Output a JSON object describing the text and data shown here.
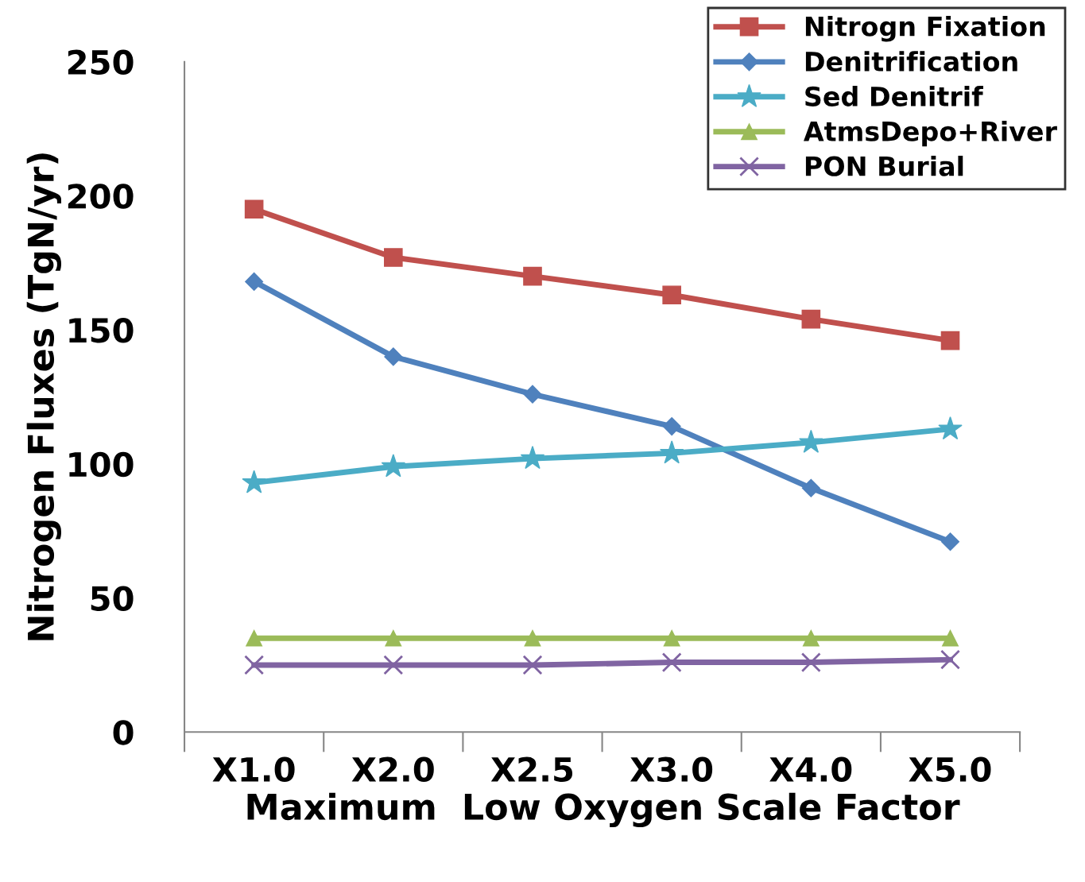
{
  "chart_data": {
    "type": "line",
    "xlabel": "Maximum  Low Oxygen Scale Factor",
    "ylabel": "Nitrogen Fluxes (TgN/yr)",
    "categories": [
      "X1.0",
      "X2.0",
      "X2.5",
      "X3.0",
      "X4.0",
      "X5.0"
    ],
    "series": [
      {
        "name": "Nitrogn Fixation",
        "color": "#c0504d",
        "marker": "square",
        "values": [
          195,
          177,
          170,
          163,
          154,
          146
        ]
      },
      {
        "name": "Denitrification",
        "color": "#4f81bd",
        "marker": "diamond",
        "values": [
          168,
          140,
          126,
          114,
          91,
          71
        ]
      },
      {
        "name": "Sed Denitrif",
        "color": "#4bacc6",
        "marker": "star",
        "values": [
          93,
          99,
          102,
          104,
          108,
          113
        ]
      },
      {
        "name": "AtmsDepo+River",
        "color": "#9bbb59",
        "marker": "triangle",
        "values": [
          35,
          35,
          35,
          35,
          35,
          35
        ]
      },
      {
        "name": "PON Burial",
        "color": "#8064a2",
        "marker": "cross",
        "values": [
          25,
          25,
          25,
          26,
          26,
          27
        ]
      }
    ],
    "ylim": [
      0,
      250
    ],
    "yticks": [
      0,
      50,
      100,
      150,
      200,
      250
    ],
    "grid": false,
    "legend": "top right"
  }
}
